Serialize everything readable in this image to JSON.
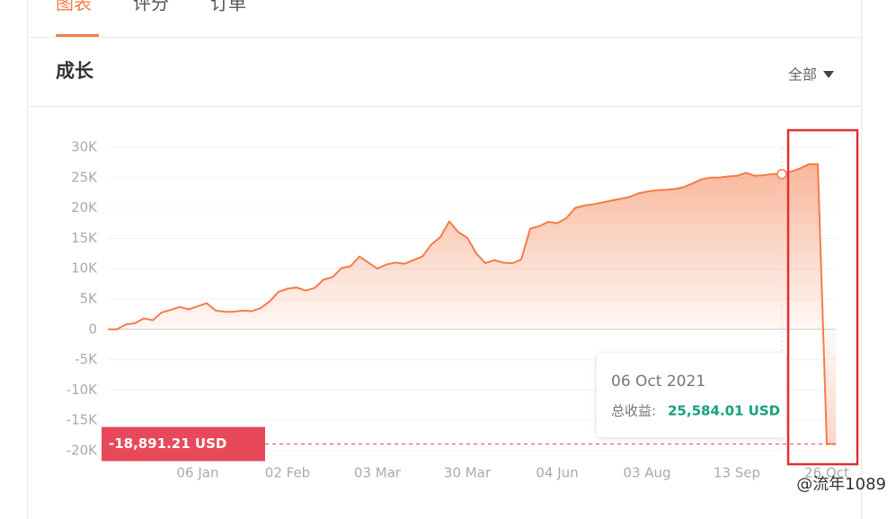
{
  "tabs": [
    "图表",
    "评分",
    "订单"
  ],
  "section_title": "成长",
  "filter": "全部",
  "watermark": "@流年1089",
  "chart_data": {
    "type": "area",
    "color": "#f47c4a",
    "categories": [
      null,
      null,
      null,
      null,
      null,
      null,
      null,
      null,
      null,
      null,
      "06 Jan",
      null,
      null,
      null,
      null,
      null,
      null,
      null,
      null,
      null,
      "02 Feb",
      null,
      null,
      null,
      null,
      null,
      null,
      null,
      null,
      null,
      "03 Mar",
      null,
      null,
      null,
      null,
      null,
      null,
      null,
      null,
      null,
      "30 Mar",
      null,
      null,
      null,
      null,
      null,
      null,
      null,
      null,
      null,
      "04 Jun",
      null,
      null,
      null,
      null,
      null,
      null,
      null,
      null,
      null,
      "03 Aug",
      null,
      null,
      null,
      null,
      null,
      null,
      null,
      null,
      null,
      "13 Sep",
      null,
      null,
      null,
      null,
      null,
      null,
      null,
      null,
      null,
      "26 Oct",
      null
    ],
    "values": [
      0,
      0,
      800,
      1000,
      1800,
      1500,
      2800,
      3200,
      3700,
      3300,
      3800,
      4300,
      3100,
      2900,
      2900,
      3100,
      3000,
      3500,
      4600,
      6200,
      6700,
      6900,
      6400,
      6800,
      8200,
      8600,
      10100,
      10400,
      12000,
      11000,
      10000,
      10700,
      11000,
      10800,
      11400,
      12000,
      14000,
      15200,
      17800,
      16000,
      15100,
      12500,
      10900,
      11400,
      11000,
      10900,
      11500,
      16600,
      17000,
      17700,
      17500,
      18300,
      20000,
      20400,
      20600,
      20900,
      21200,
      21500,
      21800,
      22400,
      22700,
      22900,
      23000,
      23100,
      23400,
      24000,
      24700,
      25000,
      25000,
      25200,
      25300,
      25800,
      25300,
      25400,
      25600,
      25584.01,
      26000,
      26500,
      27200,
      27200,
      -18891.21,
      -18891.21
    ],
    "ylim": [
      -20000,
      30000
    ],
    "yticks": [
      {
        "value": 30000,
        "label": "30K"
      },
      {
        "value": 25000,
        "label": "25K"
      },
      {
        "value": 20000,
        "label": "20K"
      },
      {
        "value": 15000,
        "label": "15K"
      },
      {
        "value": 10000,
        "label": "10K"
      },
      {
        "value": 5000,
        "label": "5K"
      },
      0,
      {
        "value": -5000,
        "label": "-5K"
      },
      {
        "value": -10000,
        "label": "-10K"
      },
      {
        "value": -15000,
        "label": "-15K"
      },
      {
        "value": -20000,
        "label": "-20K"
      }
    ],
    "grid": true,
    "tooltip": {
      "index": 75,
      "date": "06 Oct 2021",
      "label": "总收益:",
      "value": 25584.01,
      "value_label": "25,584.01 USD"
    },
    "current": {
      "value": -18891.21,
      "label": "-18,891.21 USD"
    }
  }
}
